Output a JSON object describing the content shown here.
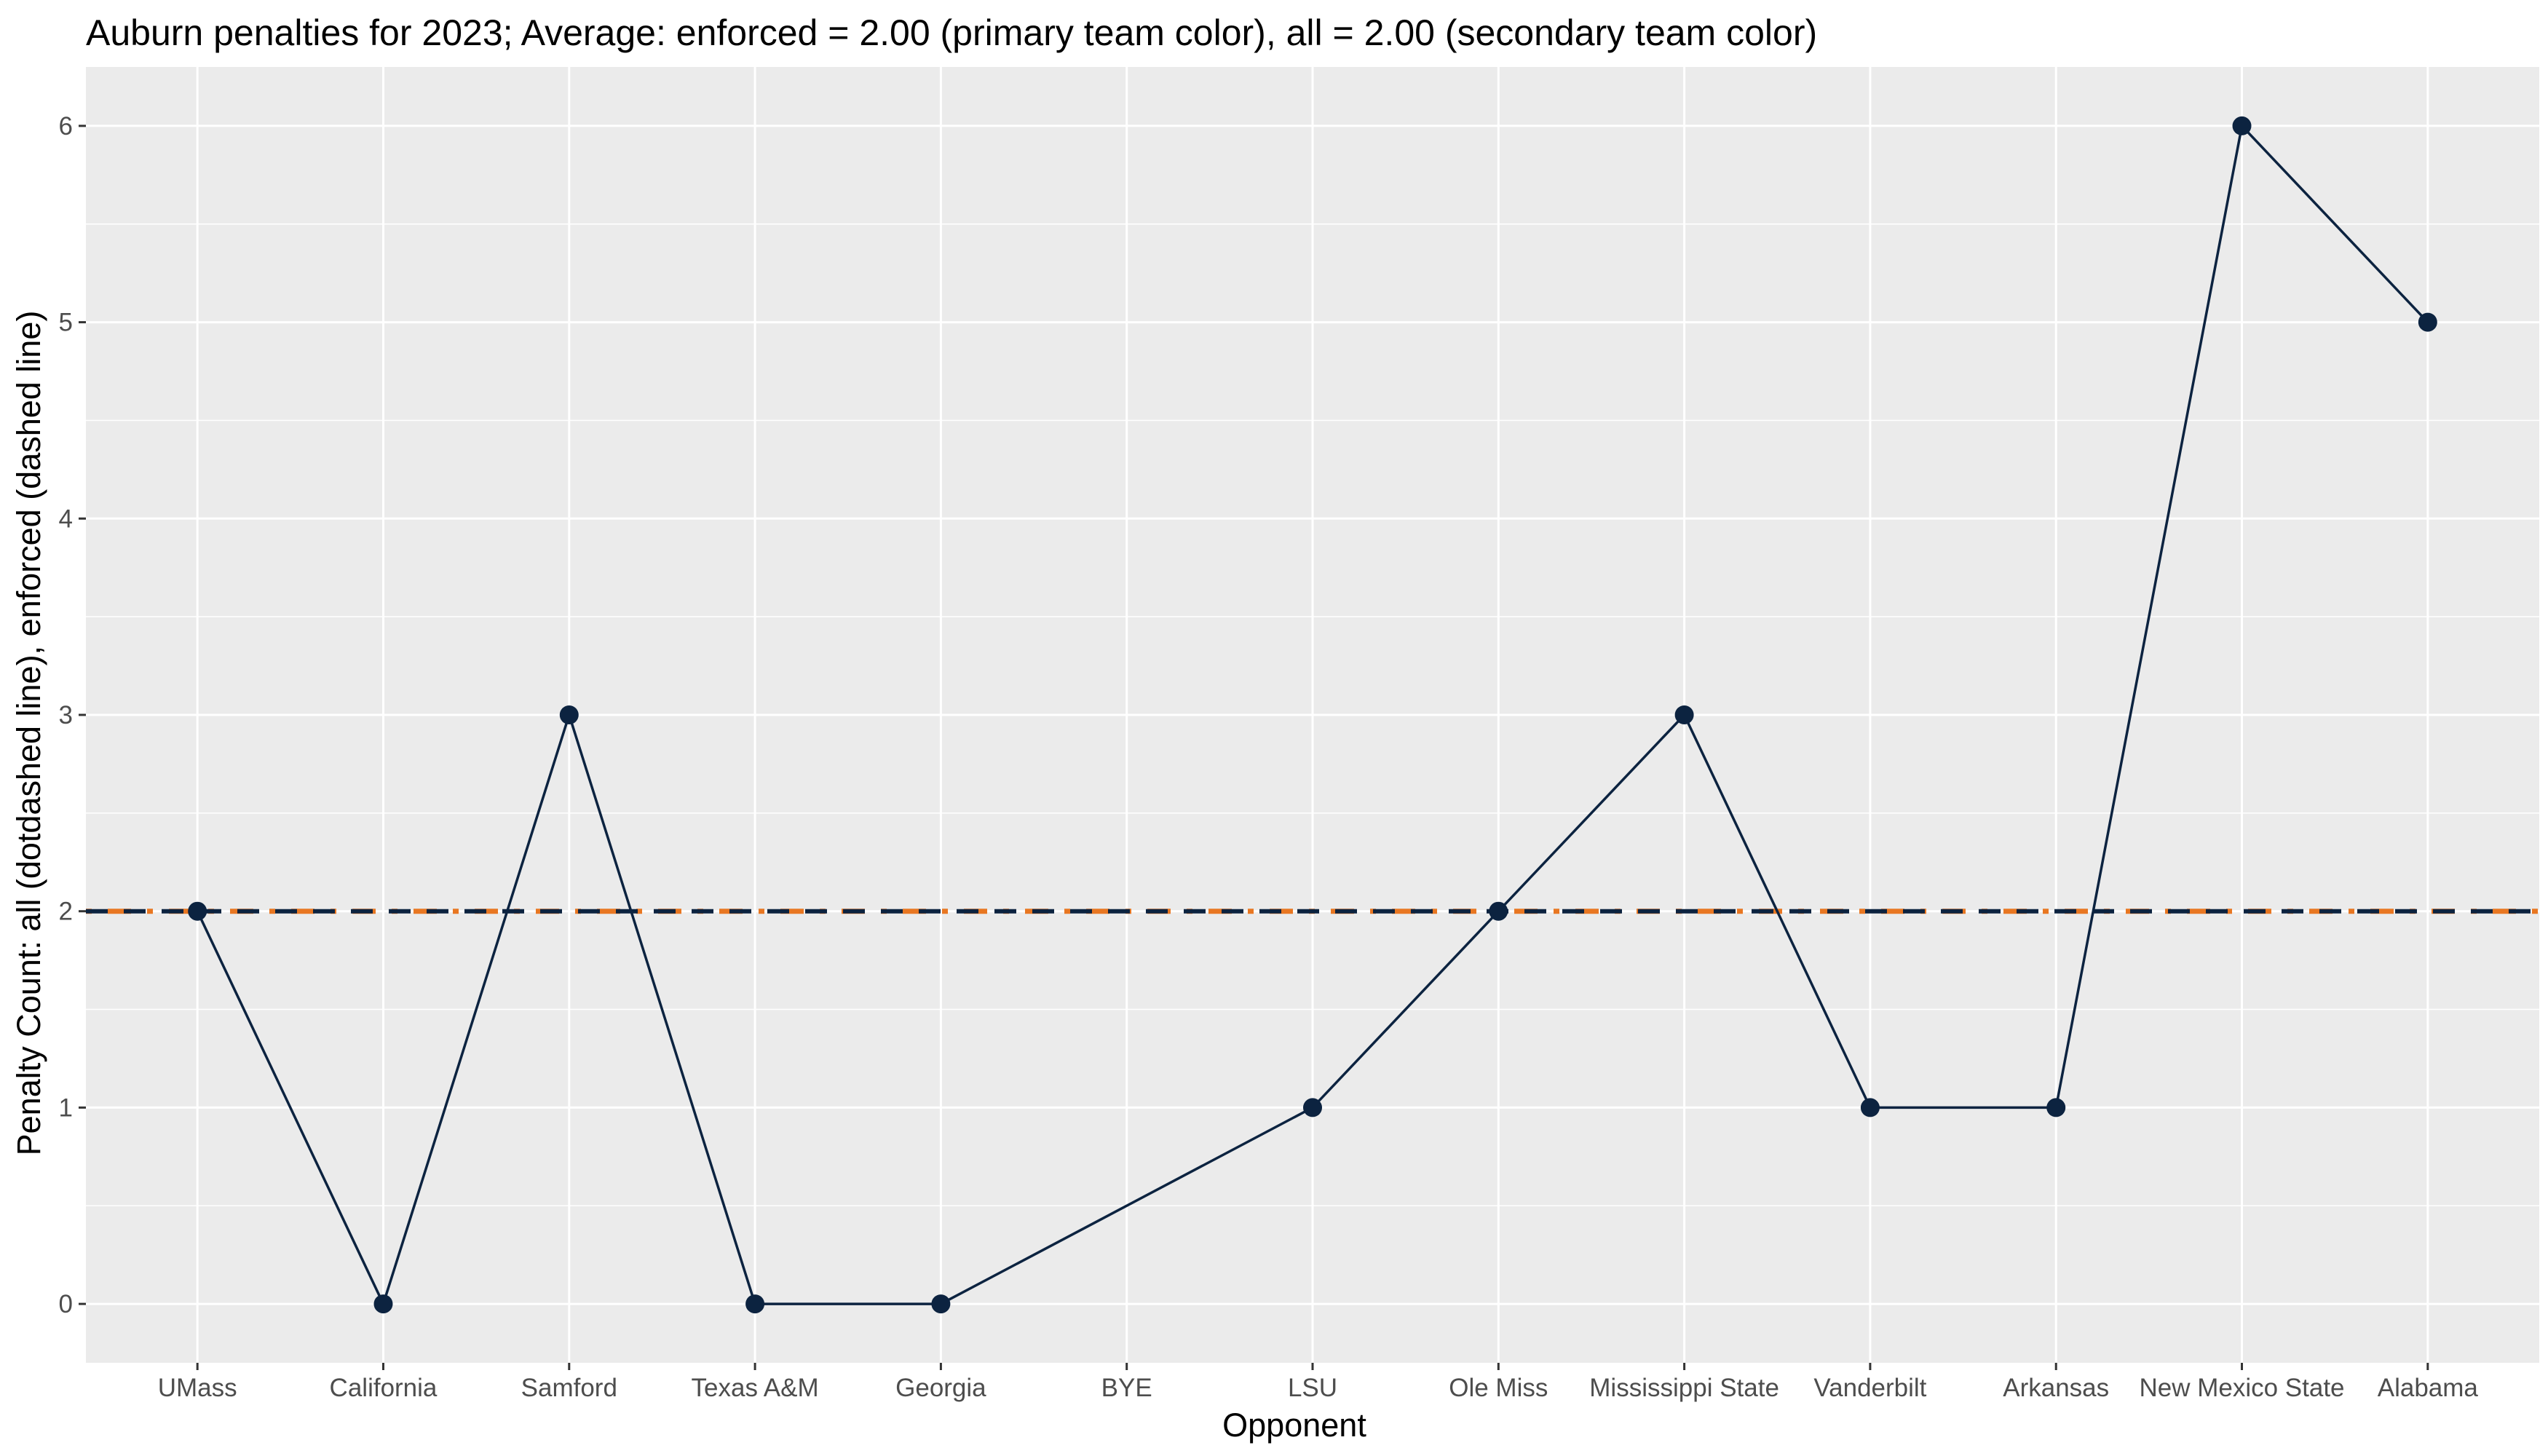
{
  "chart_data": {
    "type": "line",
    "title": "Auburn penalties for 2023; Average: enforced = 2.00 (primary team color), all = 2.00 (secondary team color)",
    "xlabel": "Opponent",
    "ylabel": "Penalty Count: all (dotdashed line), enforced (dashed line)",
    "categories": [
      "UMass",
      "California",
      "Samford",
      "Texas A&M",
      "Georgia",
      "BYE",
      "LSU",
      "Ole Miss",
      "Mississippi State",
      "Vanderbilt",
      "Arkansas",
      "New Mexico State",
      "Alabama"
    ],
    "yticks": [
      0,
      1,
      2,
      3,
      4,
      5,
      6
    ],
    "ylim": [
      -0.3,
      6.3
    ],
    "grid": true,
    "series": [
      {
        "values": [
          2,
          0,
          3,
          0,
          0,
          null,
          1,
          2,
          3,
          1,
          1,
          6,
          5
        ],
        "color": "#0C2340",
        "connect_gaps": true
      }
    ],
    "reference_lines": [
      {
        "y": 2.0,
        "style": "dotdash",
        "color": "#E87722"
      },
      {
        "y": 2.0,
        "style": "dashed",
        "color": "#0C2340"
      }
    ],
    "panel_color": "#EBEBEB",
    "grid_color": "#FFFFFF"
  }
}
